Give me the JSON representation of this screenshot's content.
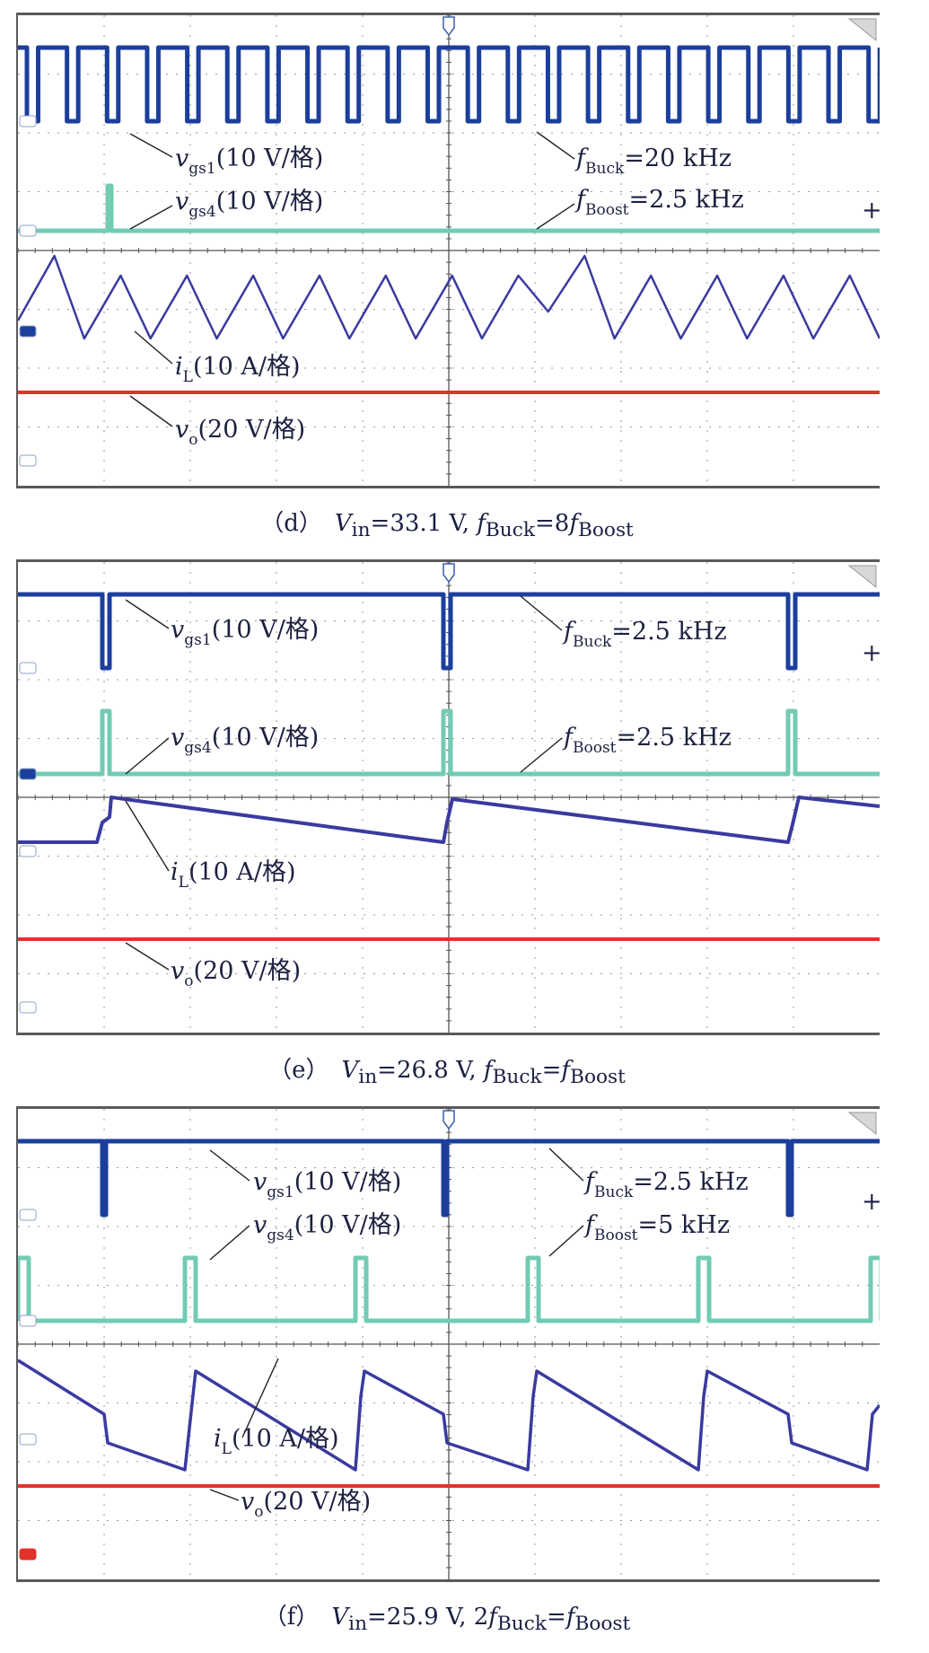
{
  "chart_data": [
    {
      "type": "line",
      "panel": "(d)",
      "caption": {
        "part": "（d）",
        "text": "V_in=33.1 V, f_Buck=8f_Boost",
        "display": "Vin=33.1 V, fBuck=8fBoost"
      },
      "grid": true,
      "divisions": {
        "x": 10,
        "y": 8
      },
      "series": [
        {
          "name": "vgs1(10 V/格)",
          "color": "#1c3f9d",
          "kind": "pwm",
          "frequency_khz": 20
        },
        {
          "name": "vgs4(10 V/格)",
          "color": "#72cbb3",
          "kind": "pulse",
          "frequency_khz": 2.5
        },
        {
          "name": "iL(10 A/格)",
          "color": "#3a3aa0",
          "kind": "triangle"
        },
        {
          "name": "vo(20 V/格)",
          "color": "#e2322a",
          "kind": "dc"
        }
      ],
      "annotations": [
        "fBuck=20 kHz",
        "fBoost=2.5 kHz"
      ]
    },
    {
      "type": "line",
      "panel": "(e)",
      "caption": {
        "part": "（e）",
        "text": "V_in=26.8 V, f_Buck=f_Boost",
        "display": "Vin=26.8 V, fBuck=fBoost"
      },
      "grid": true,
      "divisions": {
        "x": 10,
        "y": 8
      },
      "series": [
        {
          "name": "vgs1(10 V/格)",
          "color": "#1c3f9d",
          "kind": "pwm",
          "frequency_khz": 2.5
        },
        {
          "name": "vgs4(10 V/格)",
          "color": "#72cbb3",
          "kind": "pulse",
          "frequency_khz": 2.5
        },
        {
          "name": "iL(10 A/格)",
          "color": "#3a3aa0",
          "kind": "ramp"
        },
        {
          "name": "vo(20 V/格)",
          "color": "#e2322a",
          "kind": "dc"
        }
      ],
      "annotations": [
        "fBuck=2.5 kHz",
        "fBoost=2.5 kHz"
      ]
    },
    {
      "type": "line",
      "panel": "(f)",
      "caption": {
        "part": "（f）",
        "text": "V_in=25.9 V, 2f_Buck=f_Boost",
        "display": "Vin=25.9 V, 2fBuck=fBoost"
      },
      "grid": true,
      "divisions": {
        "x": 10,
        "y": 8
      },
      "series": [
        {
          "name": "vgs1(10 V/格)",
          "color": "#1c3f9d",
          "kind": "pwm",
          "frequency_khz": 2.5
        },
        {
          "name": "vgs4(10 V/格)",
          "color": "#72cbb3",
          "kind": "pulse",
          "frequency_khz": 5
        },
        {
          "name": "iL(10 A/格)",
          "color": "#3a3aa0",
          "kind": "sawtooth"
        },
        {
          "name": "vo(20 V/格)",
          "color": "#e2322a",
          "kind": "dc"
        }
      ],
      "annotations": [
        "fBuck=2.5 kHz",
        "fBoost=5 kHz"
      ]
    }
  ],
  "labels": {
    "vgs1": {
      "main": "v",
      "sub": "gs1",
      "rest": "(10 V/格)"
    },
    "vgs4": {
      "main": "v",
      "sub": "gs4",
      "rest": "(10 V/格)"
    },
    "iL": {
      "main": "i",
      "sub": "L",
      "rest": "(10 A/格)"
    },
    "vo": {
      "main": "v",
      "sub": "o",
      "rest": "(20 V/格)"
    }
  },
  "captions": {
    "d": {
      "part": "（d）",
      "pre": "V",
      "pre_sub": "in",
      "mid": "=33.1 V, ",
      "f1": "f",
      "f1_sub": "Buck",
      "eq": "=8",
      "f2": "f",
      "f2_sub": "Boost"
    },
    "e": {
      "part": "（e）",
      "pre": "V",
      "pre_sub": "in",
      "mid": "=26.8 V, ",
      "f1": "f",
      "f1_sub": "Buck",
      "eq": "=",
      "f2": "f",
      "f2_sub": "Boost"
    },
    "f": {
      "part": "（f）",
      "pre": "V",
      "pre_sub": "in",
      "mid": "=25.9 V, 2",
      "f1": "f",
      "f1_sub": "Buck",
      "eq": "=",
      "f2": "f",
      "f2_sub": "Boost"
    }
  },
  "freq_labels": {
    "d": [
      {
        "f": "f",
        "sub": "Buck",
        "val": "=20 kHz"
      },
      {
        "f": "f",
        "sub": "Boost",
        "val": "=2.5 kHz"
      }
    ],
    "e": [
      {
        "f": "f",
        "sub": "Buck",
        "val": "=2.5 kHz"
      },
      {
        "f": "f",
        "sub": "Boost",
        "val": "=2.5 kHz"
      }
    ],
    "f": [
      {
        "f": "f",
        "sub": "Buck",
        "val": "=2.5 kHz"
      },
      {
        "f": "f",
        "sub": "Boost",
        "val": "=5 kHz"
      }
    ]
  }
}
